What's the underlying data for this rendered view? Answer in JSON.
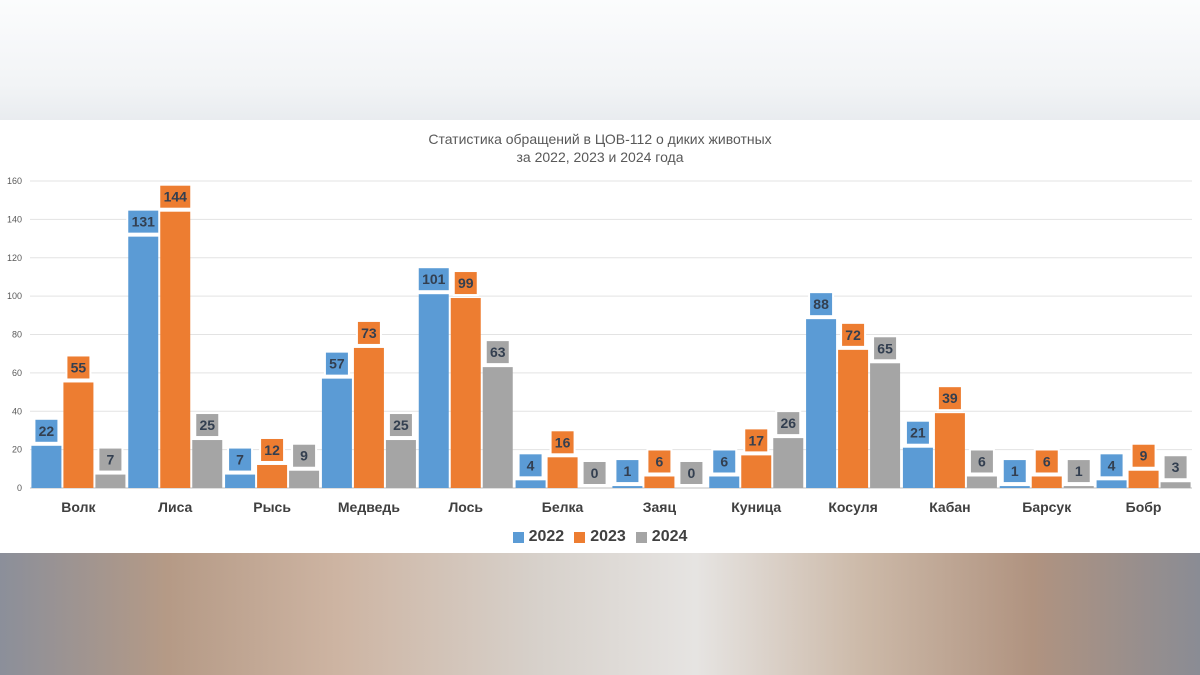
{
  "chart_data": {
    "type": "bar",
    "title": "Статистика обращений в ЦОВ-112 о диких животных",
    "subtitle": "за 2022, 2023 и 2024 года",
    "categories": [
      "Волк",
      "Лиса",
      "Рысь",
      "Медведь",
      "Лось",
      "Белка",
      "Заяц",
      "Куница",
      "Косуля",
      "Кабан",
      "Барсук",
      "Бобр"
    ],
    "series": [
      {
        "name": "2022",
        "color": "#5b9bd5",
        "values": [
          22,
          131,
          7,
          57,
          101,
          4,
          1,
          6,
          88,
          21,
          1,
          4
        ]
      },
      {
        "name": "2023",
        "color": "#ed7d31",
        "values": [
          55,
          144,
          12,
          73,
          99,
          16,
          6,
          17,
          72,
          39,
          6,
          9
        ]
      },
      {
        "name": "2024",
        "color": "#a5a5a5",
        "values": [
          7,
          25,
          9,
          25,
          63,
          0,
          0,
          26,
          65,
          6,
          1,
          3
        ]
      }
    ],
    "ylim": [
      0,
      160
    ],
    "yticks": [
      0,
      20,
      40,
      60,
      80,
      100,
      120,
      140,
      160
    ],
    "xlabel": "",
    "ylabel": "",
    "grid": true,
    "legend": "bottom"
  }
}
